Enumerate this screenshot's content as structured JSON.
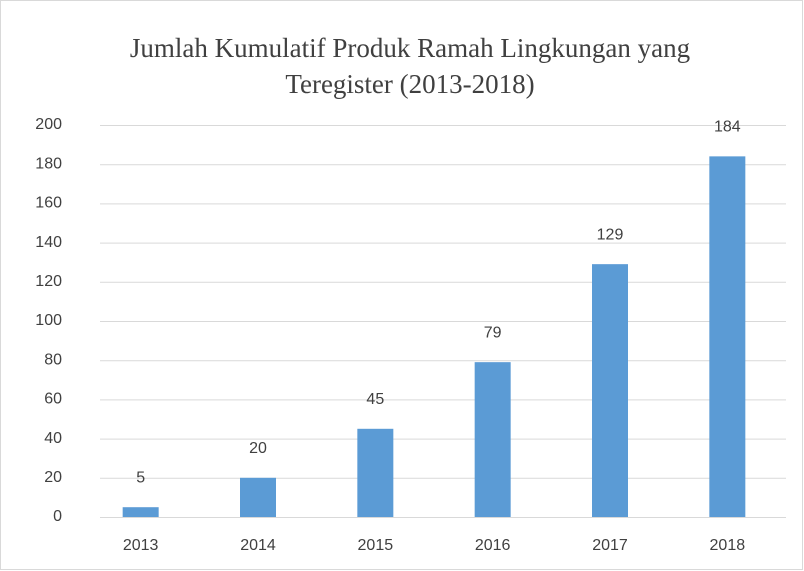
{
  "chart_data": {
    "type": "bar",
    "title": "Jumlah Kumulatif Produk Ramah Lingkungan yang Teregister (2013-2018)",
    "categories": [
      "2013",
      "2014",
      "2015",
      "2016",
      "2017",
      "2018"
    ],
    "values": [
      5,
      20,
      45,
      79,
      129,
      184
    ],
    "color": "#5b9bd5",
    "ylim": [
      0,
      200
    ],
    "yticks": [
      0,
      20,
      40,
      60,
      80,
      100,
      120,
      140,
      160,
      180,
      200
    ],
    "grid": true,
    "data_labels": true
  }
}
